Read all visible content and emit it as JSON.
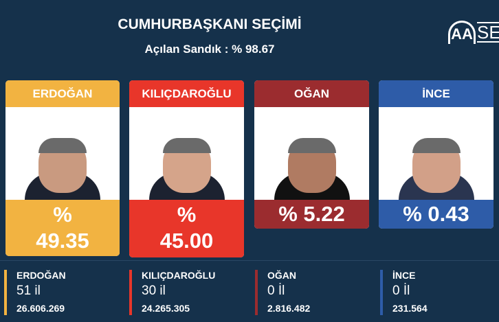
{
  "header": {
    "title": "CUMHURBAŞKANI SEÇİMİ",
    "subtitle": "Açılan Sandık : % 98.67",
    "logo_text": "AA SEÇİM"
  },
  "candidates": [
    {
      "name": "ERDOĞAN",
      "percent_label": "%",
      "percent": "49.35",
      "color": "#f2b341",
      "provinces": "51 il",
      "votes": "26.606.269"
    },
    {
      "name": "KILIÇDAROĞLU",
      "percent_label": "%",
      "percent": "45.00",
      "color": "#e8362a",
      "provinces": "30 il",
      "votes": "24.265.305"
    },
    {
      "name": "OĞAN",
      "percent_label": "% 5.22",
      "color": "#9b2c2f",
      "provinces": "0 İl",
      "votes": "2.816.482"
    },
    {
      "name": "İNCE",
      "percent_label": "% 0.43",
      "color": "#2e5ca8",
      "provinces": "0 İl",
      "votes": "231.564"
    }
  ]
}
